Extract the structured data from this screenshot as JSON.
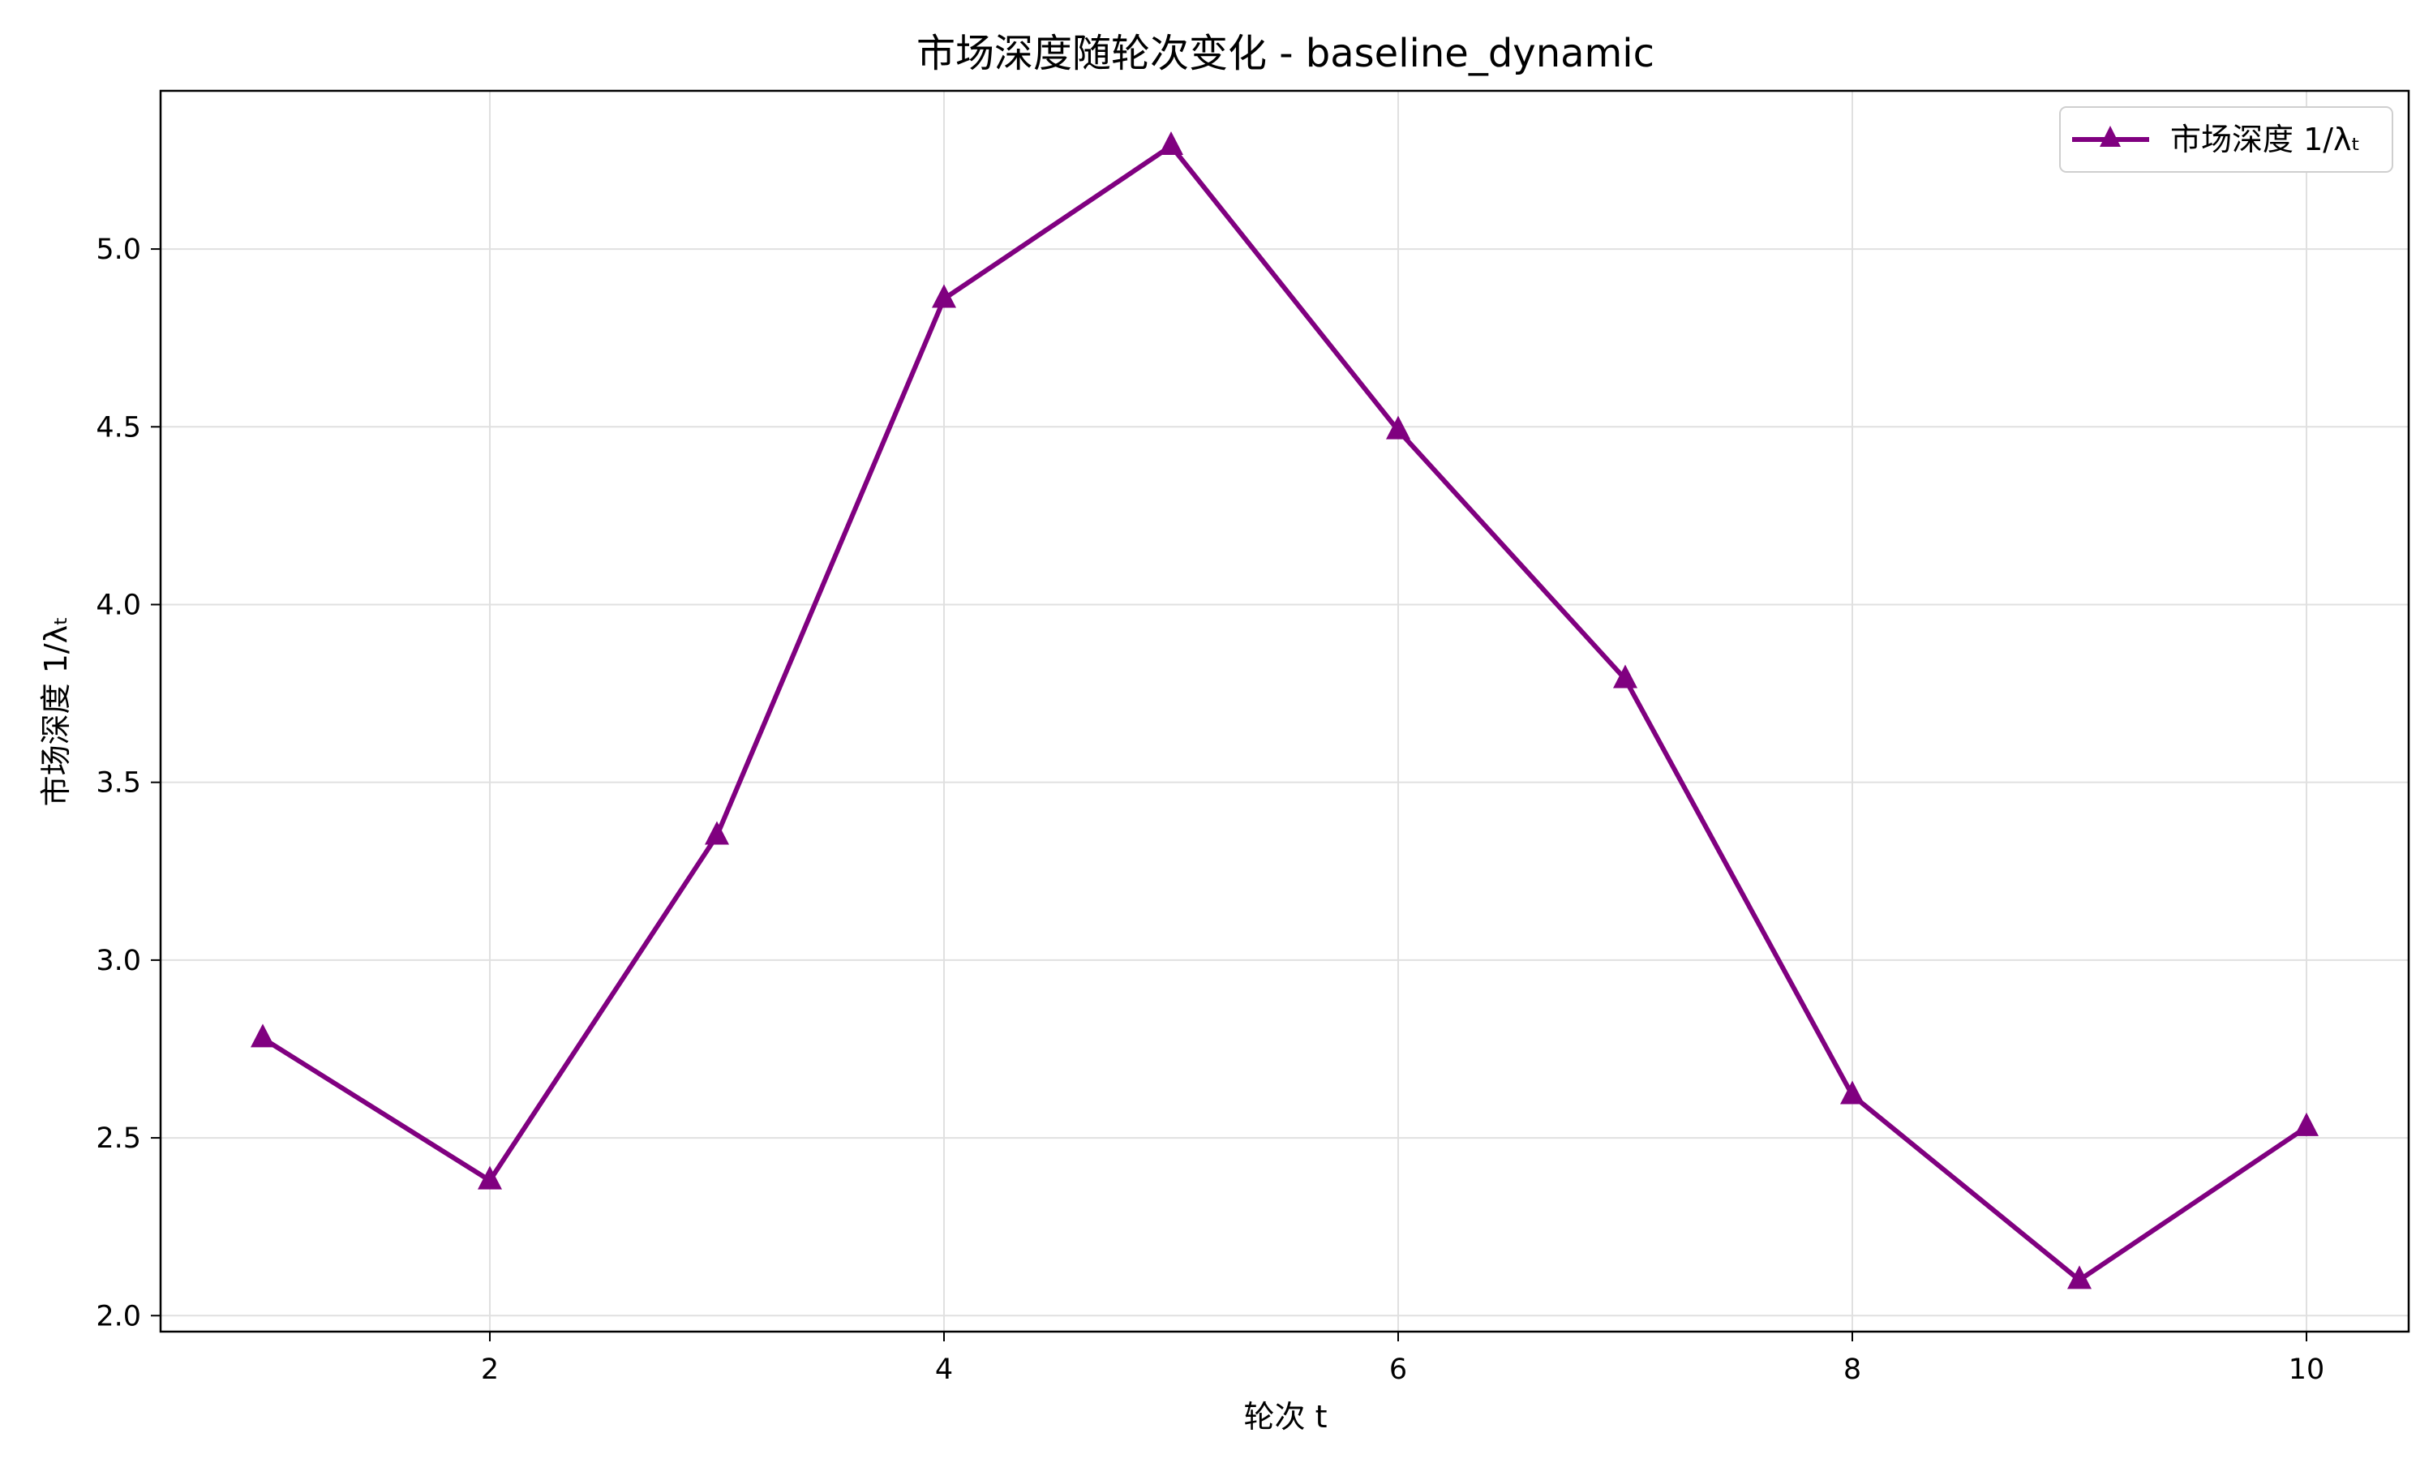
{
  "chart_data": {
    "type": "line",
    "title": "市场深度随轮次变化 - baseline_dynamic",
    "xlabel": "轮次 t",
    "ylabel": "市场深度 1/λₜ",
    "xlim": [
      0.55,
      10.45
    ],
    "ylim": [
      1.955,
      5.445
    ],
    "xticks": [
      2,
      4,
      6,
      8,
      10
    ],
    "xtick_labels": [
      "2",
      "4",
      "6",
      "8",
      "10"
    ],
    "yticks": [
      2.0,
      2.5,
      3.0,
      3.5,
      4.0,
      4.5,
      5.0
    ],
    "ytick_labels": [
      "2.0",
      "2.5",
      "3.0",
      "3.5",
      "4.0",
      "4.5",
      "5.0"
    ],
    "grid": true,
    "legend_position": "top-right",
    "series": [
      {
        "name": "市场深度 1/λₜ",
        "color": "#800080",
        "marker": "triangle",
        "x": [
          1,
          2,
          3,
          4,
          5,
          6,
          7,
          8,
          9,
          10
        ],
        "y": [
          2.78,
          2.38,
          3.35,
          4.86,
          5.29,
          4.49,
          3.79,
          2.62,
          2.1,
          2.53
        ]
      }
    ]
  }
}
